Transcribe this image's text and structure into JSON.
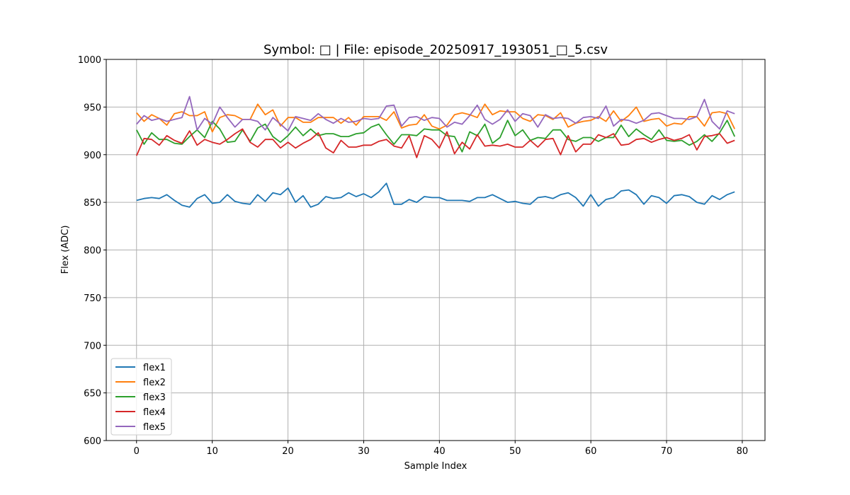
{
  "chart_data": {
    "type": "line",
    "title": "Symbol: □ | File: episode_20250917_193051_□_5.csv",
    "xlabel": "Sample Index",
    "ylabel": "Flex (ADC)",
    "xlim": [
      -4,
      83
    ],
    "ylim": [
      600,
      1000
    ],
    "x_ticks": [
      0,
      10,
      20,
      30,
      40,
      50,
      60,
      70,
      80
    ],
    "y_ticks": [
      600,
      650,
      700,
      750,
      800,
      850,
      900,
      950,
      1000
    ],
    "grid": true,
    "legend_position": "lower-left",
    "x": [
      0,
      1,
      2,
      3,
      4,
      5,
      6,
      7,
      8,
      9,
      10,
      11,
      12,
      13,
      14,
      15,
      16,
      17,
      18,
      19,
      20,
      21,
      22,
      23,
      24,
      25,
      26,
      27,
      28,
      29,
      30,
      31,
      32,
      33,
      34,
      35,
      36,
      37,
      38,
      39,
      40,
      41,
      42,
      43,
      44,
      45,
      46,
      47,
      48,
      49,
      50,
      51,
      52,
      53,
      54,
      55,
      56,
      57,
      58,
      59,
      60,
      61,
      62,
      63,
      64,
      65,
      66,
      67,
      68,
      69,
      70,
      71,
      72,
      73,
      74,
      75,
      76,
      77,
      78,
      79
    ],
    "series": [
      {
        "name": "flex1",
        "color": "#1f77b4",
        "values": [
          852,
          854,
          855,
          854,
          858,
          852,
          847,
          845,
          854,
          858,
          849,
          850,
          858,
          851,
          849,
          848,
          858,
          851,
          860,
          858,
          865,
          850,
          857,
          845,
          848,
          856,
          854,
          855,
          860,
          856,
          859,
          855,
          861,
          870,
          848,
          848,
          853,
          850,
          856,
          855,
          855,
          852,
          852,
          852,
          851,
          855,
          855,
          858,
          854,
          850,
          851,
          849,
          848,
          855,
          856,
          854,
          858,
          860,
          855,
          846,
          858,
          846,
          853,
          855,
          862,
          863,
          858,
          848,
          857,
          855,
          849,
          857,
          858,
          856,
          850,
          848,
          857,
          853,
          858,
          861
        ]
      },
      {
        "name": "flex2",
        "color": "#ff7f0e",
        "values": [
          944,
          935,
          942,
          938,
          931,
          943,
          945,
          941,
          941,
          945,
          924,
          939,
          942,
          941,
          937,
          937,
          953,
          942,
          947,
          930,
          939,
          939,
          934,
          934,
          939,
          939,
          939,
          933,
          939,
          931,
          940,
          940,
          940,
          936,
          945,
          928,
          931,
          932,
          942,
          930,
          927,
          931,
          942,
          944,
          942,
          939,
          953,
          942,
          946,
          945,
          945,
          938,
          935,
          942,
          941,
          937,
          944,
          929,
          933,
          935,
          936,
          940,
          935,
          946,
          935,
          941,
          950,
          935,
          937,
          938,
          930,
          933,
          932,
          940,
          940,
          930,
          944,
          945,
          943,
          927
        ]
      },
      {
        "name": "flex3",
        "color": "#2ca02c",
        "values": [
          926,
          911,
          923,
          916,
          916,
          912,
          911,
          919,
          926,
          918,
          935,
          927,
          913,
          914,
          926,
          914,
          928,
          932,
          919,
          913,
          920,
          929,
          920,
          927,
          920,
          922,
          922,
          919,
          919,
          922,
          923,
          929,
          932,
          921,
          911,
          921,
          921,
          920,
          927,
          926,
          926,
          920,
          919,
          903,
          924,
          920,
          932,
          912,
          918,
          936,
          920,
          926,
          915,
          918,
          917,
          926,
          926,
          916,
          914,
          918,
          918,
          914,
          918,
          918,
          931,
          919,
          927,
          921,
          916,
          926,
          915,
          914,
          915,
          910,
          914,
          921,
          914,
          923,
          936,
          919
        ]
      },
      {
        "name": "flex4",
        "color": "#d62728",
        "values": [
          899,
          917,
          916,
          910,
          920,
          915,
          912,
          925,
          910,
          916,
          913,
          911,
          916,
          922,
          927,
          913,
          908,
          916,
          916,
          907,
          913,
          907,
          912,
          916,
          923,
          907,
          902,
          915,
          908,
          908,
          910,
          910,
          914,
          916,
          909,
          907,
          920,
          897,
          920,
          916,
          907,
          924,
          901,
          913,
          906,
          921,
          909,
          910,
          909,
          911,
          908,
          908,
          915,
          908,
          916,
          917,
          900,
          920,
          903,
          911,
          911,
          921,
          918,
          922,
          910,
          911,
          916,
          917,
          913,
          916,
          918,
          915,
          917,
          921,
          905,
          919,
          920,
          922,
          912,
          915
        ]
      },
      {
        "name": "flex5",
        "color": "#9467bd",
        "values": [
          932,
          941,
          936,
          938,
          935,
          937,
          939,
          961,
          926,
          938,
          932,
          950,
          939,
          929,
          937,
          937,
          935,
          926,
          939,
          932,
          925,
          940,
          938,
          936,
          943,
          937,
          933,
          938,
          934,
          935,
          938,
          937,
          938,
          951,
          952,
          930,
          939,
          940,
          936,
          939,
          938,
          929,
          934,
          932,
          941,
          952,
          937,
          932,
          937,
          947,
          935,
          943,
          941,
          929,
          942,
          938,
          939,
          938,
          933,
          939,
          940,
          938,
          951,
          930,
          937,
          936,
          933,
          936,
          943,
          944,
          941,
          938,
          938,
          937,
          940,
          958,
          935,
          927,
          946,
          943
        ]
      }
    ]
  }
}
